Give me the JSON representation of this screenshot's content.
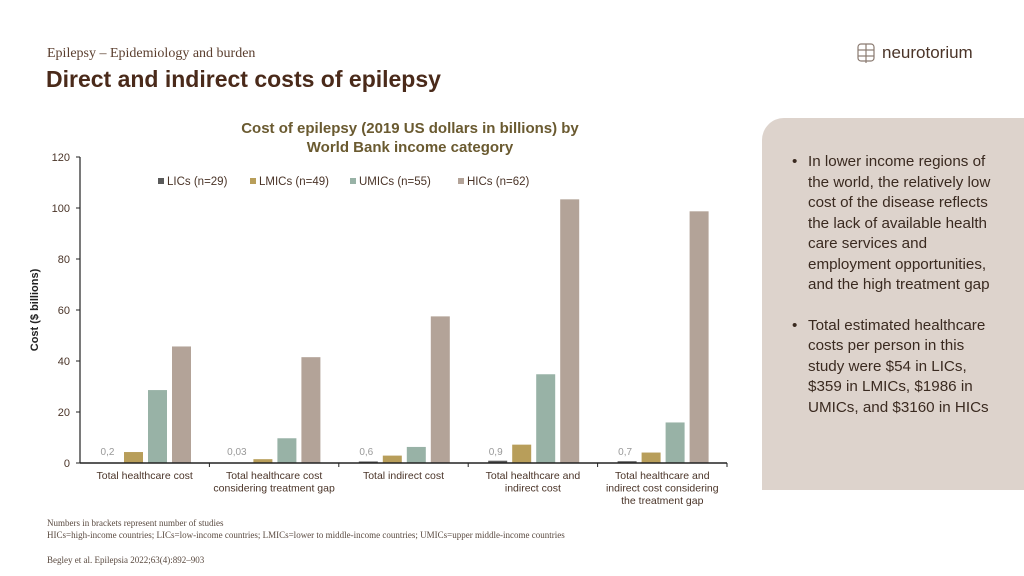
{
  "header": {
    "subtitle": "Epilepsy – Epidemiology and burden",
    "title": "Direct and indirect costs of epilepsy",
    "logo_text": "neurotorium"
  },
  "chart_data": {
    "type": "bar",
    "title": "Cost of epilepsy (2019 US dollars in billions) by World Bank income category",
    "title_lines": [
      "Cost of epilepsy (2019 US dollars in billions) by",
      "World Bank income category"
    ],
    "ylabel": "Cost ($ billions)",
    "xlabel": "",
    "ylim": [
      0,
      120
    ],
    "yticks": [
      0,
      20,
      40,
      60,
      80,
      100,
      120
    ],
    "legend_position": "top",
    "categories": [
      [
        "Total healthcare cost"
      ],
      [
        "Total healthcare cost",
        "considering treatment gap"
      ],
      [
        "Total indirect cost"
      ],
      [
        "Total healthcare and",
        "indirect cost"
      ],
      [
        "Total healthcare and",
        "indirect cost considering",
        "the treatment gap"
      ]
    ],
    "series": [
      {
        "name": "LICs (n=29)",
        "color": "#5a5a5a",
        "values": [
          0.2,
          0.03,
          0.6,
          0.9,
          0.7
        ],
        "labels": [
          "0,2",
          "0,03",
          "0,6",
          "0,9",
          "0,7"
        ]
      },
      {
        "name": "LMICs (n=49)",
        "color": "#b89e5a",
        "values": [
          4.3,
          1.5,
          2.9,
          7.2,
          4.1
        ]
      },
      {
        "name": "UMICs (n=55)",
        "color": "#98b2a6",
        "values": [
          28.6,
          9.7,
          6.3,
          34.8,
          15.9
        ]
      },
      {
        "name": "HICs (n=62)",
        "color": "#b3a398",
        "values": [
          45.7,
          41.5,
          57.5,
          103.4,
          98.7
        ]
      }
    ]
  },
  "panel": {
    "bullets": [
      "In lower income regions of the world, the relatively low cost of the disease reflects the lack of available health care services and employment opportunities, and the high treatment gap",
      "Total estimated healthcare costs per person in this study were $54 in LICs, $359 in LMICs, $1986 in UMICs, and $3160 in HICs"
    ]
  },
  "footer": {
    "notes": [
      "Numbers in brackets represent number of studies",
      "HICs=high-income countries; LICs=low-income countries; LMICs=lower to middle-income countries; UMICs=upper middle-income countries"
    ],
    "citation": "Begley et al. Epilepsia 2022;63(4):892–903"
  }
}
